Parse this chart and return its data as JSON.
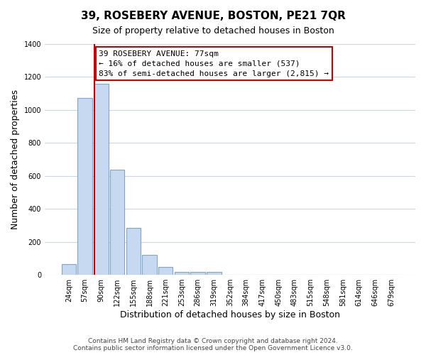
{
  "title": "39, ROSEBERY AVENUE, BOSTON, PE21 7QR",
  "subtitle": "Size of property relative to detached houses in Boston",
  "xlabel": "Distribution of detached houses by size in Boston",
  "ylabel": "Number of detached properties",
  "bar_labels": [
    "24sqm",
    "57sqm",
    "90sqm",
    "122sqm",
    "155sqm",
    "188sqm",
    "221sqm",
    "253sqm",
    "286sqm",
    "319sqm",
    "352sqm",
    "384sqm",
    "417sqm",
    "450sqm",
    "483sqm",
    "515sqm",
    "548sqm",
    "581sqm",
    "614sqm",
    "646sqm",
    "679sqm"
  ],
  "bar_values": [
    65,
    1070,
    1155,
    635,
    285,
    120,
    48,
    20,
    18,
    18,
    0,
    0,
    0,
    0,
    0,
    0,
    0,
    0,
    0,
    0,
    0
  ],
  "bar_color": "#c6d9f0",
  "bar_edge_color": "#7da6d4",
  "property_line_color": "#cc0000",
  "property_line_xbar": 1.606,
  "ylim": [
    0,
    1400
  ],
  "yticks": [
    0,
    200,
    400,
    600,
    800,
    1000,
    1200,
    1400
  ],
  "annotation_text": "39 ROSEBERY AVENUE: 77sqm\n← 16% of detached houses are smaller (537)\n83% of semi-detached houses are larger (2,815) →",
  "annotation_box_color": "#ffffff",
  "annotation_box_edge": "#cc0000",
  "footer1": "Contains HM Land Registry data © Crown copyright and database right 2024.",
  "footer2": "Contains public sector information licensed under the Open Government Licence v3.0.",
  "background_color": "#ffffff",
  "grid_color": "#c8d8e8",
  "title_fontsize": 11,
  "subtitle_fontsize": 9,
  "axis_label_fontsize": 9,
  "tick_fontsize": 7,
  "annotation_fontsize": 8,
  "footer_fontsize": 6.5
}
